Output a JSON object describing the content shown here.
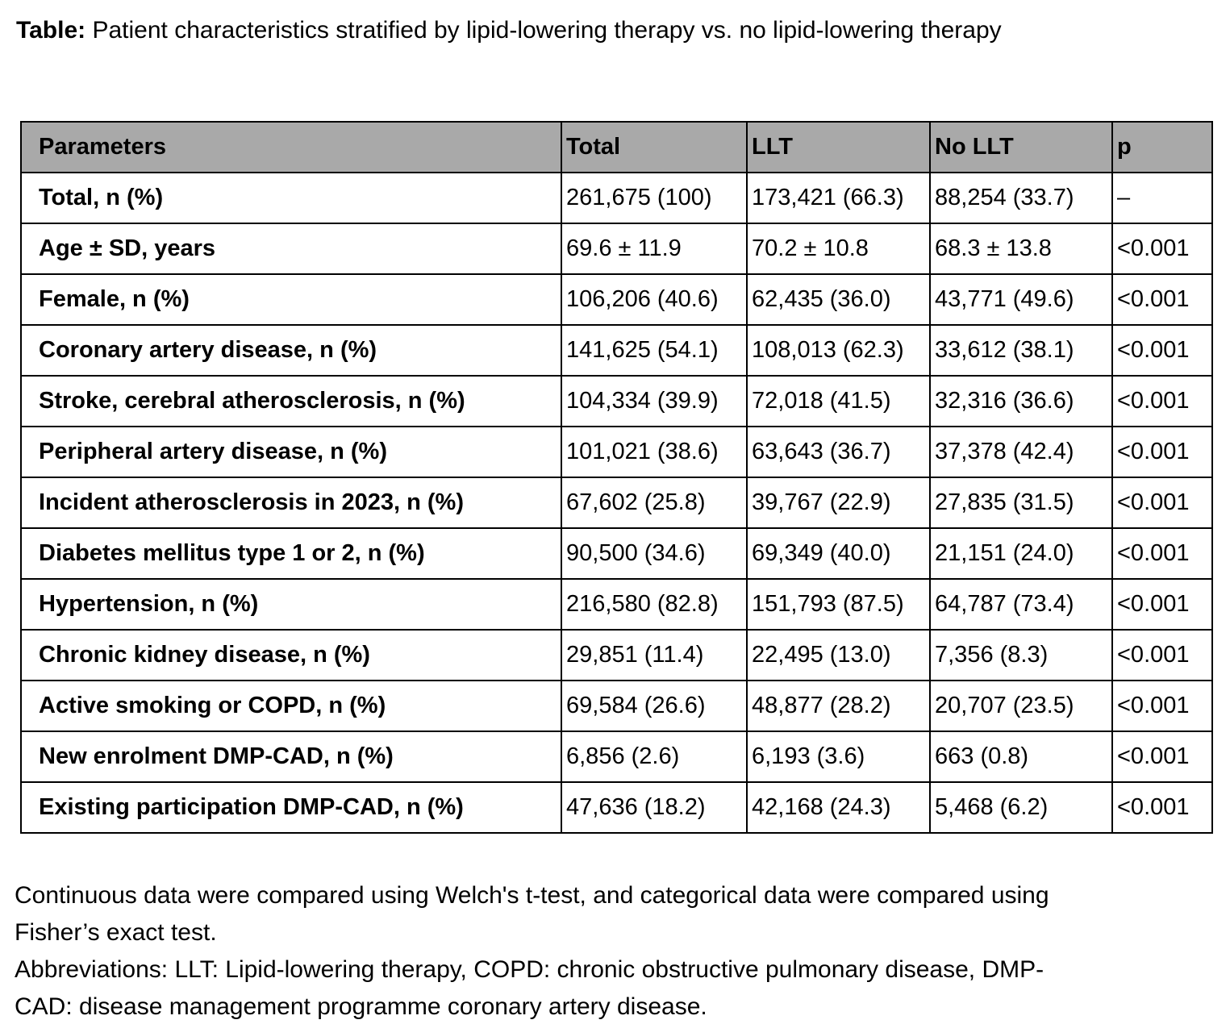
{
  "title": {
    "prefix": "Table:",
    "text": " Patient characteristics stratified by lipid-lowering therapy vs. no lipid-lowering therapy"
  },
  "table": {
    "header_bg": "#A9A9A9",
    "columns": [
      "Parameters",
      "Total",
      "LLT",
      "No LLT",
      "p"
    ],
    "rows": [
      [
        "Total, n (%)",
        "261,675 (100)",
        "173,421 (66.3)",
        "88,254 (33.7)",
        "–"
      ],
      [
        "Age ± SD, years",
        "69.6 ± 11.9",
        "70.2 ± 10.8",
        "68.3 ± 13.8",
        "<0.001"
      ],
      [
        "Female, n (%)",
        "106,206 (40.6)",
        "62,435 (36.0)",
        "43,771 (49.6)",
        "<0.001"
      ],
      [
        "Coronary artery disease, n (%)",
        "141,625 (54.1)",
        "108,013 (62.3)",
        "33,612 (38.1)",
        "<0.001"
      ],
      [
        "Stroke, cerebral atherosclerosis, n (%)",
        "104,334 (39.9)",
        "72,018 (41.5)",
        "32,316 (36.6)",
        "<0.001"
      ],
      [
        "Peripheral artery disease, n (%)",
        "101,021 (38.6)",
        "63,643 (36.7)",
        "37,378 (42.4)",
        "<0.001"
      ],
      [
        "Incident atherosclerosis in 2023, n (%)",
        "67,602 (25.8)",
        "39,767 (22.9)",
        "27,835 (31.5)",
        "<0.001"
      ],
      [
        "Diabetes mellitus type 1 or 2, n (%)",
        "90,500 (34.6)",
        "69,349 (40.0)",
        "21,151 (24.0)",
        "<0.001"
      ],
      [
        "Hypertension, n (%)",
        "216,580 (82.8)",
        "151,793 (87.5)",
        "64,787 (73.4)",
        "<0.001"
      ],
      [
        "Chronic kidney disease, n (%)",
        "29,851 (11.4)",
        "22,495 (13.0)",
        "7,356 (8.3)",
        "<0.001"
      ],
      [
        "Active smoking or COPD, n (%)",
        "69,584 (26.6)",
        "48,877 (28.2)",
        "20,707 (23.5)",
        "<0.001"
      ],
      [
        "New enrolment DMP-CAD, n (%)",
        "6,856 (2.6)",
        "6,193 (3.6)",
        "663 (0.8)",
        "<0.001"
      ],
      [
        "Existing participation DMP-CAD, n (%)",
        "47,636 (18.2)",
        "42,168 (24.3)",
        "5,468 (6.2)",
        "<0.001"
      ]
    ]
  },
  "footnote": {
    "lines": [
      "Continuous data were compared using Welch's t-test, and categorical data were compared using",
      "Fisher’s exact test.",
      "Abbreviations: LLT: Lipid-lowering therapy, COPD: chronic obstructive pulmonary disease, DMP-",
      "CAD: disease management programme coronary artery disease."
    ]
  }
}
